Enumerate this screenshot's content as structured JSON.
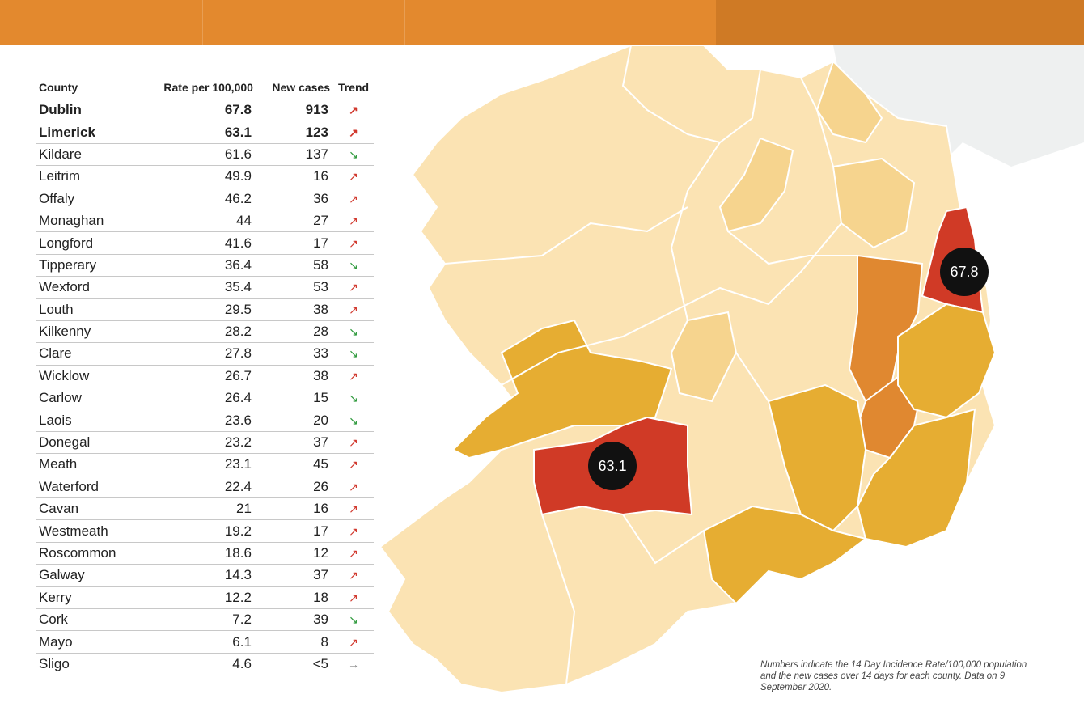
{
  "table": {
    "headers": {
      "county": "County",
      "rate": "Rate per 100,000",
      "cases": "New cases",
      "trend": "Trend"
    },
    "rows": [
      {
        "county": "Dublin",
        "rate": "67.8",
        "cases": "913",
        "trend": "↗",
        "dir": "up",
        "bold": true
      },
      {
        "county": "Limerick",
        "rate": "63.1",
        "cases": "123",
        "trend": "↗",
        "dir": "up",
        "bold": true
      },
      {
        "county": "Kildare",
        "rate": "61.6",
        "cases": "137",
        "trend": "↘",
        "dir": "down"
      },
      {
        "county": "Leitrim",
        "rate": "49.9",
        "cases": "16",
        "trend": "↗",
        "dir": "up"
      },
      {
        "county": "Offaly",
        "rate": "46.2",
        "cases": "36",
        "trend": "↗",
        "dir": "up"
      },
      {
        "county": "Monaghan",
        "rate": "44",
        "cases": "27",
        "trend": "↗",
        "dir": "up"
      },
      {
        "county": "Longford",
        "rate": "41.6",
        "cases": "17",
        "trend": "↗",
        "dir": "up"
      },
      {
        "county": "Tipperary",
        "rate": "36.4",
        "cases": "58",
        "trend": "↘",
        "dir": "down"
      },
      {
        "county": "Wexford",
        "rate": "35.4",
        "cases": "53",
        "trend": "↗",
        "dir": "up"
      },
      {
        "county": "Louth",
        "rate": "29.5",
        "cases": "38",
        "trend": "↗",
        "dir": "up"
      },
      {
        "county": "Kilkenny",
        "rate": "28.2",
        "cases": "28",
        "trend": "↘",
        "dir": "down"
      },
      {
        "county": "Clare",
        "rate": "27.8",
        "cases": "33",
        "trend": "↘",
        "dir": "down"
      },
      {
        "county": "Wicklow",
        "rate": "26.7",
        "cases": "38",
        "trend": "↗",
        "dir": "up"
      },
      {
        "county": "Carlow",
        "rate": "26.4",
        "cases": "15",
        "trend": "↘",
        "dir": "down"
      },
      {
        "county": "Laois",
        "rate": "23.6",
        "cases": "20",
        "trend": "↘",
        "dir": "down"
      },
      {
        "county": "Donegal",
        "rate": "23.2",
        "cases": "37",
        "trend": "↗",
        "dir": "up"
      },
      {
        "county": "Meath",
        "rate": "23.1",
        "cases": "45",
        "trend": "↗",
        "dir": "up"
      },
      {
        "county": "Waterford",
        "rate": "22.4",
        "cases": "26",
        "trend": "↗",
        "dir": "up"
      },
      {
        "county": "Cavan",
        "rate": "21",
        "cases": "16",
        "trend": "↗",
        "dir": "up"
      },
      {
        "county": "Westmeath",
        "rate": "19.2",
        "cases": "17",
        "trend": "↗",
        "dir": "up"
      },
      {
        "county": "Roscommon",
        "rate": "18.6",
        "cases": "12",
        "trend": "↗",
        "dir": "up"
      },
      {
        "county": "Galway",
        "rate": "14.3",
        "cases": "37",
        "trend": "↗",
        "dir": "up"
      },
      {
        "county": "Kerry",
        "rate": "12.2",
        "cases": "18",
        "trend": "↗",
        "dir": "up"
      },
      {
        "county": "Cork",
        "rate": "7.2",
        "cases": "39",
        "trend": "↘",
        "dir": "down"
      },
      {
        "county": "Mayo",
        "rate": "6.1",
        "cases": "8",
        "trend": "↗",
        "dir": "up"
      },
      {
        "county": "Sligo",
        "rate": "4.6",
        "cases": "<5",
        "trend": "→",
        "dir": "flat"
      }
    ]
  },
  "map": {
    "badges": {
      "dublin": "67.8",
      "limerick": "63.1"
    },
    "colors": {
      "lightest": "#fbe3b3",
      "light": "#f6d48e",
      "mid": "#e6ad32",
      "orange": "#e08830",
      "red": "#d03a26",
      "badge": "#111111"
    }
  },
  "note": "Numbers indicate the 14 Day Incidence Rate/100,000 population and the new cases over 14 days for each county. Data on 9 September 2020."
}
